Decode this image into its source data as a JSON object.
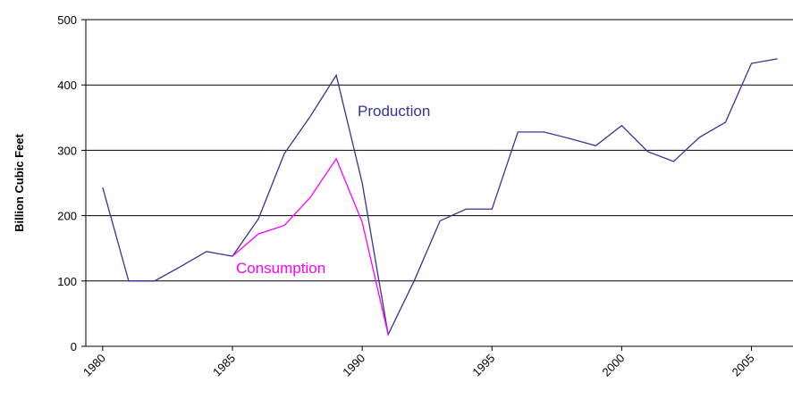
{
  "chart_data": {
    "type": "line",
    "y_label": "Billion Cubic Feet",
    "x": [
      1980,
      1981,
      1982,
      1983,
      1984,
      1985,
      1986,
      1987,
      1988,
      1989,
      1990,
      1991,
      1992,
      1993,
      1994,
      1995,
      1996,
      1997,
      1998,
      1999,
      2000,
      2001,
      2002,
      2003,
      2004,
      2005,
      2006
    ],
    "series": [
      {
        "name": "Production",
        "color": "#333399",
        "values": [
          243,
          100,
          100,
          122,
          145,
          138,
          195,
          295,
          352,
          415,
          250,
          18,
          100,
          192,
          210,
          210,
          328,
          328,
          318,
          307,
          338,
          298,
          283,
          320,
          343,
          433,
          440
        ]
      },
      {
        "name": "Consumption",
        "color": "#ff00ff",
        "values": [
          null,
          null,
          null,
          null,
          null,
          138,
          172,
          185,
          228,
          287,
          190,
          18,
          null,
          null,
          null,
          null,
          null,
          null,
          null,
          null,
          null,
          null,
          null,
          null,
          null,
          null,
          null
        ]
      }
    ],
    "xlim": [
      1979.35,
      2006.6
    ],
    "xticks": [
      1980,
      1985,
      1990,
      1995,
      2000,
      2005
    ],
    "ylim": [
      0,
      500
    ],
    "yticks": [
      0,
      100,
      200,
      300,
      400,
      500
    ],
    "grid": true
  }
}
